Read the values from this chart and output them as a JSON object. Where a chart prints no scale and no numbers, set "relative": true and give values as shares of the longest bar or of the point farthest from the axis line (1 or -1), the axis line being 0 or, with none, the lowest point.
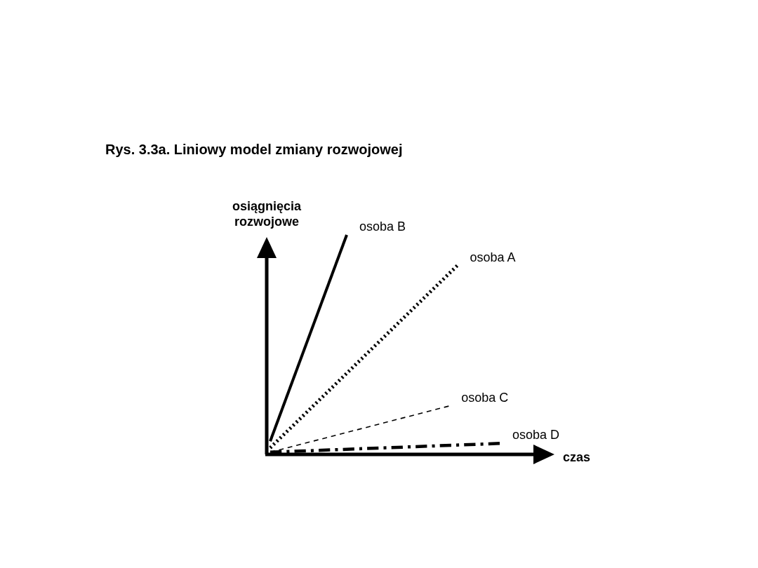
{
  "chart_data": {
    "type": "line",
    "title": "Rys. 3.3a. Liniowy model zmiany rozwojowej",
    "xlabel": "czas",
    "ylabel": "osiągnięcia rozwojowe",
    "relative": true,
    "legend": false,
    "categories": [
      null,
      null,
      null,
      null,
      null,
      null,
      null,
      null,
      null,
      null,
      null,
      null,
      null,
      null,
      null,
      null,
      null,
      null,
      null,
      null,
      null,
      null,
      null,
      null,
      null,
      null,
      null,
      null
    ],
    "series": [
      {
        "name": "osoba B",
        "color": "#000000",
        "values": [
          0.06,
          null,
          null,
          null,
          null,
          null,
          null,
          null,
          null,
          1,
          null,
          null,
          null,
          null,
          null,
          null,
          null,
          null,
          null,
          null,
          null,
          null,
          null,
          null,
          null,
          null,
          null,
          null
        ],
        "line_style": "solid"
      },
      {
        "name": "osoba A",
        "color": "#000000",
        "values": [
          0.03,
          null,
          null,
          null,
          null,
          null,
          null,
          null,
          null,
          null,
          null,
          null,
          null,
          null,
          null,
          null,
          null,
          null,
          null,
          null,
          null,
          null,
          0.86,
          null,
          null,
          null,
          null,
          null
        ],
        "line_style": "dotted"
      },
      {
        "name": "osoba C",
        "color": "#000000",
        "values": [
          0.01,
          null,
          null,
          null,
          null,
          null,
          null,
          null,
          null,
          null,
          null,
          null,
          null,
          null,
          null,
          null,
          null,
          null,
          null,
          null,
          null,
          0.22,
          null,
          null,
          null,
          null,
          null,
          null
        ],
        "line_style": "dashed"
      },
      {
        "name": "osoba D",
        "color": "#000000",
        "values": [
          0.01,
          null,
          null,
          null,
          null,
          null,
          null,
          null,
          null,
          null,
          null,
          null,
          null,
          null,
          null,
          null,
          null,
          null,
          null,
          null,
          null,
          null,
          null,
          null,
          null,
          null,
          null,
          0.05
        ],
        "line_style": "dashdot"
      }
    ]
  }
}
